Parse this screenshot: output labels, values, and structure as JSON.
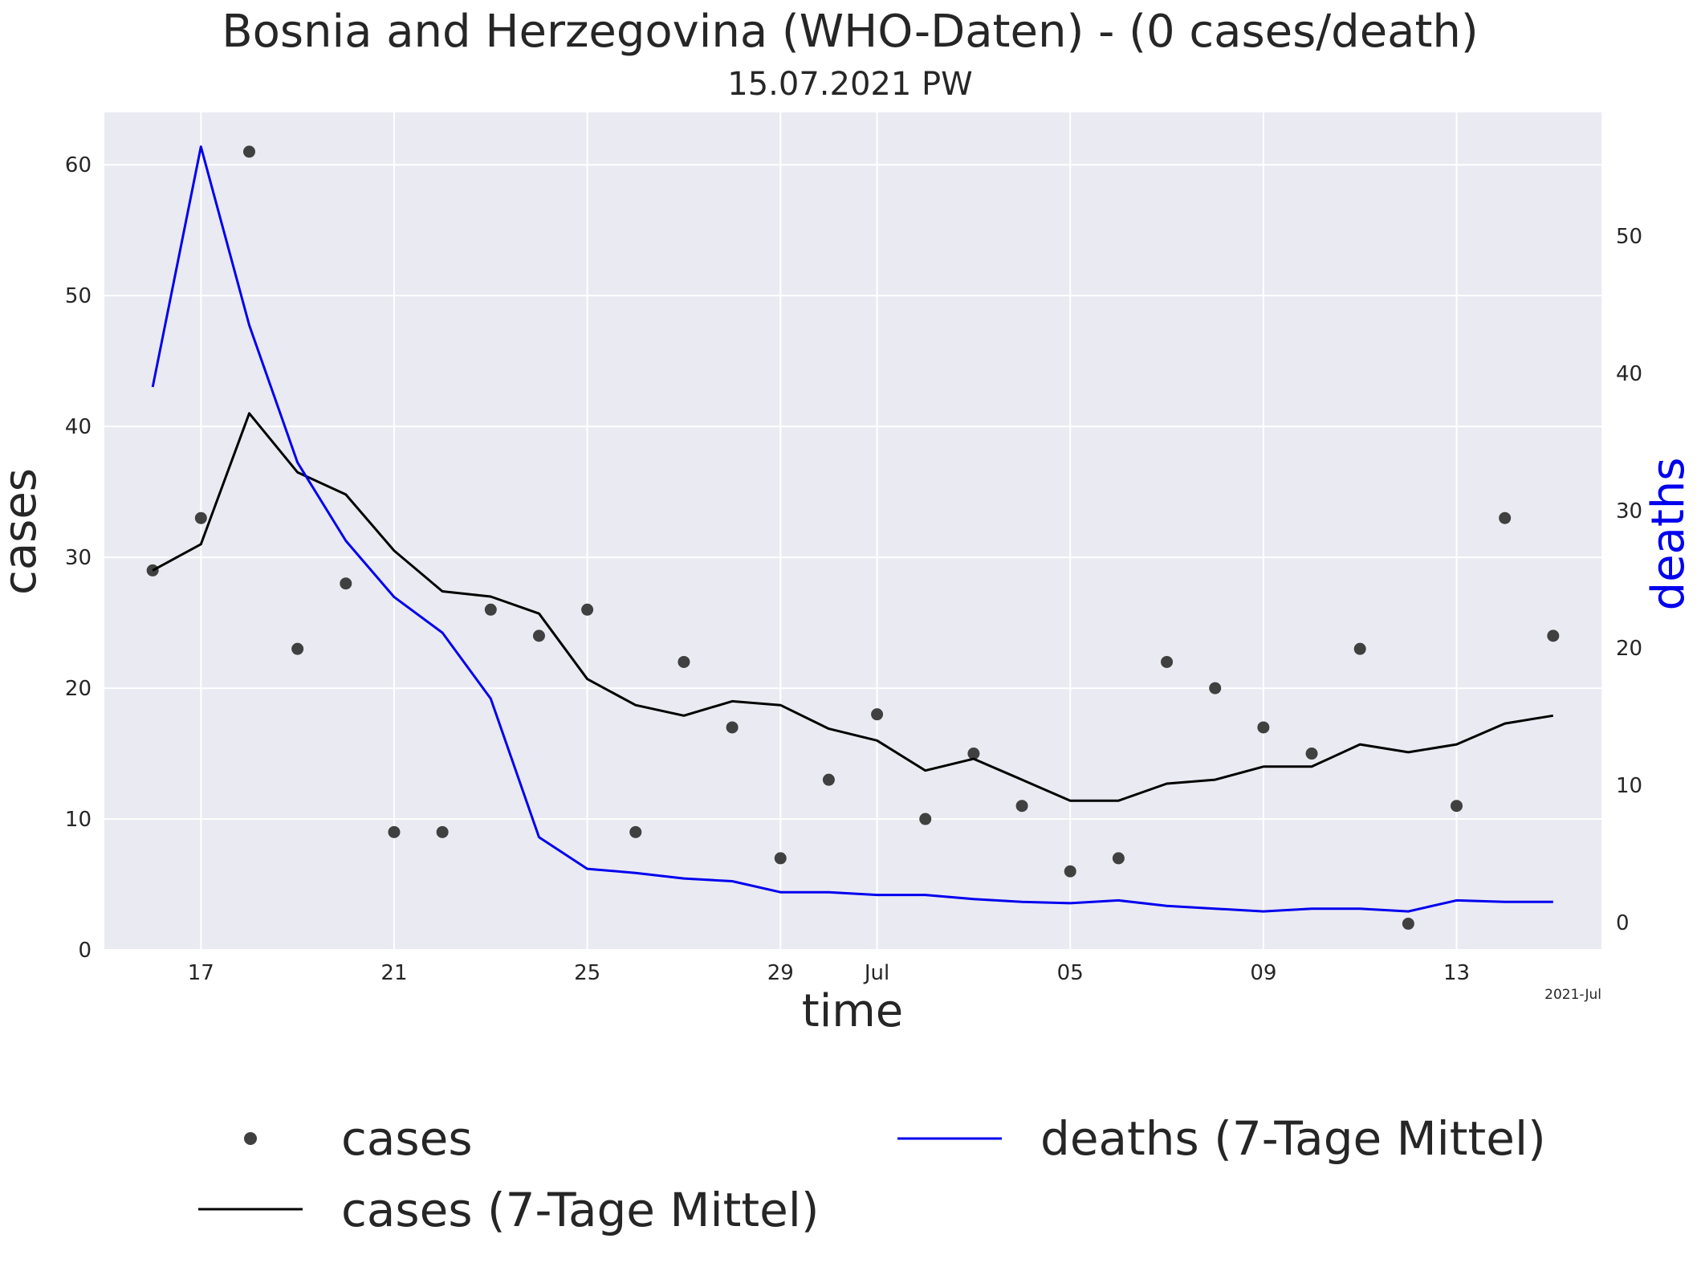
{
  "chart_data": {
    "type": "line",
    "title": "Bosnia and Herzegovina (WHO-Daten) - (0 cases/death)",
    "subtitle": "15.07.2021 PW",
    "xlabel": "time",
    "ylabel": "cases",
    "y2label": "deaths",
    "x_offset_label": "2021-Jul",
    "x": [
      "2021-06-16",
      "2021-06-17",
      "2021-06-18",
      "2021-06-19",
      "2021-06-20",
      "2021-06-21",
      "2021-06-22",
      "2021-06-23",
      "2021-06-24",
      "2021-06-25",
      "2021-06-26",
      "2021-06-27",
      "2021-06-28",
      "2021-06-29",
      "2021-06-30",
      "2021-07-01",
      "2021-07-02",
      "2021-07-03",
      "2021-07-04",
      "2021-07-05",
      "2021-07-06",
      "2021-07-07",
      "2021-07-08",
      "2021-07-09",
      "2021-07-10",
      "2021-07-11",
      "2021-07-12",
      "2021-07-13",
      "2021-07-14",
      "2021-07-15"
    ],
    "x_ticks": [
      {
        "date": "2021-06-17",
        "label": "17"
      },
      {
        "date": "2021-06-21",
        "label": "21"
      },
      {
        "date": "2021-06-25",
        "label": "25"
      },
      {
        "date": "2021-06-29",
        "label": "29"
      },
      {
        "date": "2021-07-01",
        "label": "Jul"
      },
      {
        "date": "2021-07-05",
        "label": "05"
      },
      {
        "date": "2021-07-09",
        "label": "09"
      },
      {
        "date": "2021-07-13",
        "label": "13"
      }
    ],
    "xlim": [
      "2021-06-15",
      "2021-07-16"
    ],
    "ylim": [
      0,
      64
    ],
    "y2lim": [
      -2,
      59
    ],
    "y_ticks": [
      0,
      10,
      20,
      30,
      40,
      50,
      60
    ],
    "y2_ticks": [
      0,
      10,
      20,
      30,
      40,
      50
    ],
    "grid": true,
    "legend_position": "bottom",
    "series": [
      {
        "name": "cases",
        "kind": "scatter",
        "axis": "left",
        "color": "#404040",
        "values": [
          29,
          33,
          61,
          23,
          28,
          9,
          9,
          26,
          24,
          26,
          9,
          22,
          17,
          7,
          13,
          18,
          10,
          15,
          11,
          6,
          7,
          22,
          20,
          17,
          15,
          23,
          2,
          11,
          33,
          24
        ]
      },
      {
        "name": "cases (7-Tage Mittel)",
        "kind": "line",
        "axis": "left",
        "color": "#000000",
        "values": [
          29,
          31,
          41,
          36.5,
          34.8,
          30.5,
          27.4,
          27,
          25.7,
          20.7,
          18.7,
          17.9,
          19,
          18.7,
          16.9,
          16,
          13.7,
          14.6,
          13,
          11.4,
          11.4,
          12.7,
          13,
          14,
          14,
          15.7,
          15.1,
          15.7,
          17.3,
          17.9
        ]
      },
      {
        "name": "deaths (7-Tage Mittel)",
        "kind": "line",
        "axis": "right",
        "color": "#0000ee",
        "values": [
          39,
          56.5,
          43.5,
          33.5,
          27.8,
          23.7,
          21.1,
          16.3,
          6.2,
          3.9,
          3.6,
          3.2,
          3.0,
          2.2,
          2.2,
          2.0,
          2.0,
          1.7,
          1.5,
          1.4,
          1.6,
          1.2,
          1.0,
          0.8,
          1.0,
          1.0,
          0.8,
          1.6,
          1.5,
          1.5
        ]
      }
    ]
  }
}
